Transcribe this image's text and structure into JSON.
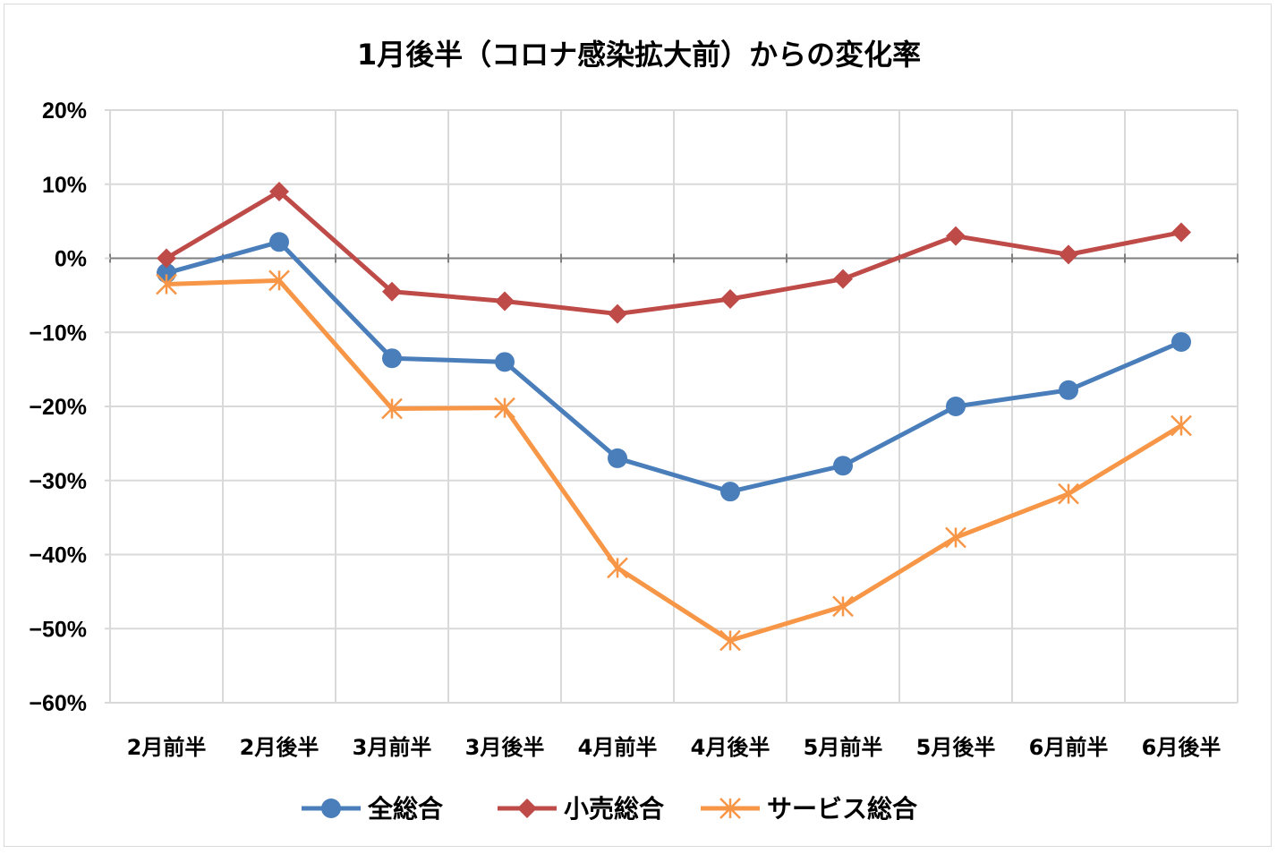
{
  "chart_data": {
    "type": "line",
    "title": "1月後半（コロナ感染拡大前）からの変化率",
    "xlabel": "",
    "ylabel": "",
    "categories": [
      "2月前半",
      "2月後半",
      "3月前半",
      "3月後半",
      "4月前半",
      "4月後半",
      "5月前半",
      "5月後半",
      "6月前半",
      "6月後半"
    ],
    "ylim": [
      -60,
      20
    ],
    "yticks": [
      20,
      10,
      0,
      -10,
      -20,
      -30,
      -40,
      -50,
      -60
    ],
    "ytick_labels": [
      "20%",
      "10%",
      "0%",
      "−10%",
      "−20%",
      "−30%",
      "−40%",
      "−50%",
      "−60%"
    ],
    "grid": true,
    "legend": "bottom",
    "series": [
      {
        "name": "全総合",
        "color": "#4a7ebb",
        "marker": "circle",
        "values": [
          -2.0,
          2.2,
          -13.5,
          -14.0,
          -27.0,
          -31.5,
          -28.0,
          -20.0,
          -17.8,
          -11.3
        ]
      },
      {
        "name": "小売総合",
        "color": "#be4b48",
        "marker": "diamond",
        "values": [
          0.0,
          9.0,
          -4.5,
          -5.8,
          -7.5,
          -5.5,
          -2.8,
          3.0,
          0.5,
          3.5
        ]
      },
      {
        "name": "サービス総合",
        "color": "#f79646",
        "marker": "asterisk",
        "values": [
          -3.5,
          -3.0,
          -20.3,
          -20.2,
          -41.8,
          -51.6,
          -47.0,
          -37.7,
          -31.8,
          -22.6
        ]
      }
    ]
  }
}
